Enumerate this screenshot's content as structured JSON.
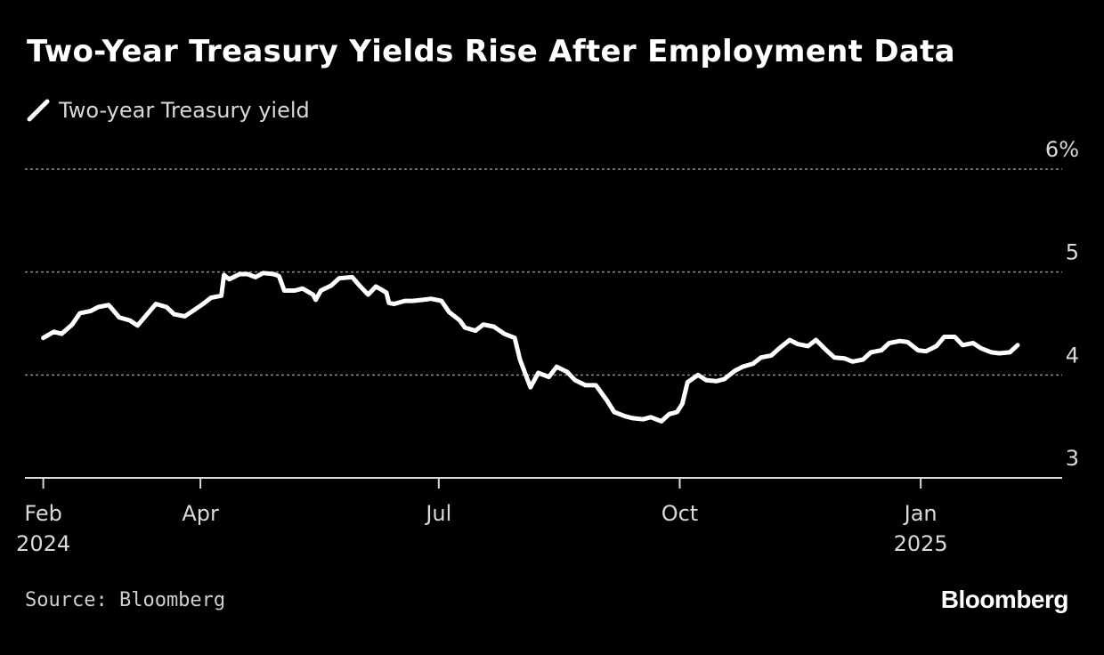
{
  "chart_data": {
    "type": "line",
    "title": "Two-Year Treasury Yields Rise After Employment Data",
    "source": "Source: Bloomberg",
    "brand": "Bloomberg",
    "legend": [
      {
        "label": "Two-year Treasury yield",
        "color": "#ffffff"
      }
    ],
    "y_axis": {
      "range": [
        3,
        6
      ],
      "ticks": [
        {
          "value": 6,
          "label": "6%"
        },
        {
          "value": 5,
          "label": "5"
        },
        {
          "value": 4,
          "label": "4"
        },
        {
          "value": 3,
          "label": "3"
        }
      ],
      "position": "right",
      "grid": "dotted"
    },
    "x_axis": {
      "range": [
        "2024-01-25",
        "2025-02-24"
      ],
      "ticks": [
        {
          "date": "2024-02-01",
          "label": "Feb",
          "sublabel": "2024"
        },
        {
          "date": "2024-04-01",
          "label": "Apr",
          "sublabel": ""
        },
        {
          "date": "2024-07-01",
          "label": "Jul",
          "sublabel": ""
        },
        {
          "date": "2024-10-01",
          "label": "Oct",
          "sublabel": ""
        },
        {
          "date": "2025-01-01",
          "label": "Jan",
          "sublabel": "2025"
        }
      ]
    },
    "series": [
      {
        "name": "Two-year Treasury yield",
        "color": "#ffffff",
        "x": [
          "2024-02-01",
          "2024-02-05",
          "2024-02-08",
          "2024-02-12",
          "2024-02-15",
          "2024-02-19",
          "2024-02-22",
          "2024-02-26",
          "2024-03-01",
          "2024-03-05",
          "2024-03-08",
          "2024-03-12",
          "2024-03-15",
          "2024-03-19",
          "2024-03-22",
          "2024-03-26",
          "2024-03-29",
          "2024-04-02",
          "2024-04-05",
          "2024-04-09",
          "2024-04-10",
          "2024-04-12",
          "2024-04-16",
          "2024-04-19",
          "2024-04-22",
          "2024-04-25",
          "2024-04-29",
          "2024-05-01",
          "2024-05-03",
          "2024-05-07",
          "2024-05-10",
          "2024-05-14",
          "2024-05-15",
          "2024-05-17",
          "2024-05-21",
          "2024-05-24",
          "2024-05-29",
          "2024-05-31",
          "2024-06-04",
          "2024-06-07",
          "2024-06-11",
          "2024-06-12",
          "2024-06-14",
          "2024-06-18",
          "2024-06-21",
          "2024-06-25",
          "2024-06-28",
          "2024-07-02",
          "2024-07-05",
          "2024-07-09",
          "2024-07-11",
          "2024-07-15",
          "2024-07-18",
          "2024-07-22",
          "2024-07-26",
          "2024-07-30",
          "2024-08-01",
          "2024-08-05",
          "2024-08-08",
          "2024-08-12",
          "2024-08-15",
          "2024-08-19",
          "2024-08-22",
          "2024-08-26",
          "2024-08-30",
          "2024-09-03",
          "2024-09-06",
          "2024-09-10",
          "2024-09-13",
          "2024-09-17",
          "2024-09-20",
          "2024-09-24",
          "2024-09-27",
          "2024-09-30",
          "2024-10-02",
          "2024-10-04",
          "2024-10-08",
          "2024-10-11",
          "2024-10-15",
          "2024-10-18",
          "2024-10-22",
          "2024-10-25",
          "2024-10-29",
          "2024-11-01",
          "2024-11-05",
          "2024-11-08",
          "2024-11-12",
          "2024-11-15",
          "2024-11-19",
          "2024-11-22",
          "2024-11-26",
          "2024-11-29",
          "2024-12-03",
          "2024-12-06",
          "2024-12-10",
          "2024-12-13",
          "2024-12-17",
          "2024-12-20",
          "2024-12-24",
          "2024-12-27",
          "2024-12-31",
          "2025-01-03",
          "2025-01-07",
          "2025-01-10",
          "2025-01-14",
          "2025-01-17",
          "2025-01-21",
          "2025-01-24",
          "2025-01-28",
          "2025-01-31",
          "2025-02-04",
          "2025-02-07"
        ],
        "values": [
          4.36,
          4.42,
          4.4,
          4.49,
          4.6,
          4.62,
          4.66,
          4.68,
          4.56,
          4.53,
          4.48,
          4.6,
          4.69,
          4.66,
          4.59,
          4.57,
          4.62,
          4.69,
          4.75,
          4.77,
          4.97,
          4.93,
          4.98,
          4.98,
          4.95,
          4.99,
          4.98,
          4.96,
          4.82,
          4.82,
          4.84,
          4.78,
          4.73,
          4.82,
          4.87,
          4.94,
          4.95,
          4.89,
          4.78,
          4.86,
          4.8,
          4.7,
          4.69,
          4.72,
          4.72,
          4.73,
          4.74,
          4.72,
          4.61,
          4.53,
          4.46,
          4.43,
          4.49,
          4.47,
          4.4,
          4.36,
          4.15,
          3.88,
          4.02,
          3.98,
          4.08,
          4.03,
          3.95,
          3.9,
          3.9,
          3.76,
          3.64,
          3.6,
          3.58,
          3.57,
          3.59,
          3.55,
          3.62,
          3.64,
          3.72,
          3.93,
          4.0,
          3.95,
          3.94,
          3.96,
          4.04,
          4.08,
          4.11,
          4.17,
          4.19,
          4.26,
          4.34,
          4.3,
          4.28,
          4.34,
          4.24,
          4.17,
          4.16,
          4.13,
          4.15,
          4.22,
          4.24,
          4.31,
          4.33,
          4.32,
          4.24,
          4.23,
          4.28,
          4.37,
          4.37,
          4.29,
          4.31,
          4.26,
          4.22,
          4.21,
          4.22,
          4.29
        ]
      }
    ]
  }
}
